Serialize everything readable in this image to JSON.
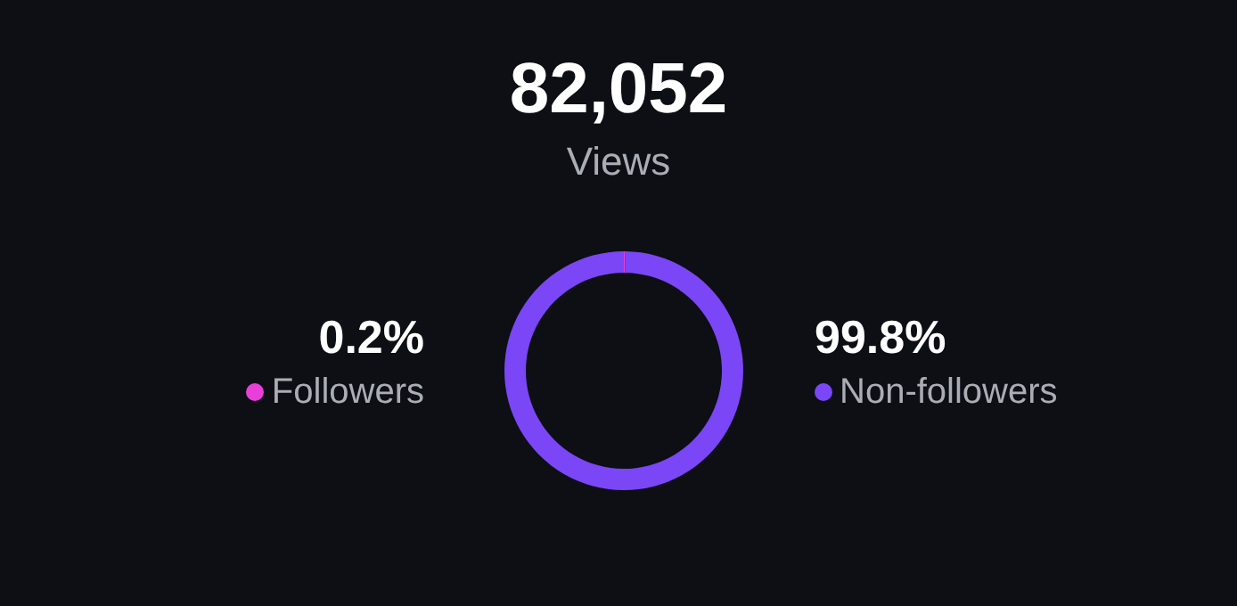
{
  "chart_data": {
    "type": "donut",
    "title": "82,052",
    "subtitle": "Views",
    "categories": [
      "Followers",
      "Non-followers"
    ],
    "values": [
      0.2,
      99.8
    ],
    "colors": [
      "#e83fd9",
      "#7b46f6"
    ],
    "value_labels": [
      "0.2%",
      "99.8%"
    ],
    "legend": "bottom"
  }
}
